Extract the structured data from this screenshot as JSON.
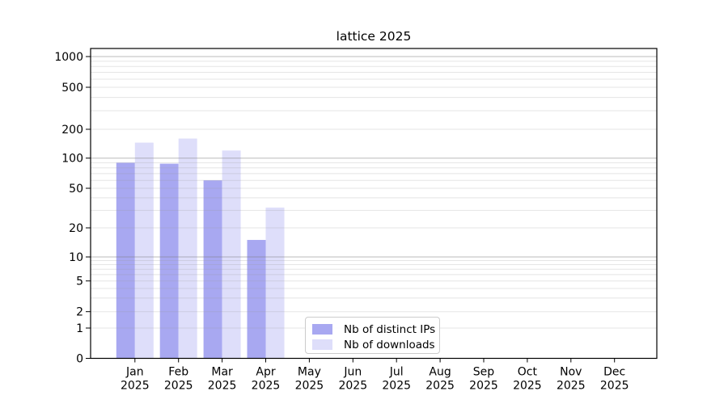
{
  "figure": {
    "background": "#ffffff",
    "text_color": "#000000"
  },
  "legend": {
    "items": [
      {
        "label": "Nb of distinct IPs",
        "color": "#a8a8f1",
        "icon": "legend-swatch-distinct-ips"
      },
      {
        "label": "Nb of downloads",
        "color": "#dedefa",
        "icon": "legend-swatch-downloads"
      }
    ]
  },
  "chart_data": {
    "type": "bar",
    "title": "lattice 2025",
    "categories": [
      "Jan",
      "Feb",
      "Mar",
      "Apr",
      "May",
      "Jun",
      "Jul",
      "Aug",
      "Sep",
      "Oct",
      "Nov",
      "Dec"
    ],
    "category_year": "2025",
    "series": [
      {
        "name": "Nb of distinct IPs",
        "color": "#a8a8f1",
        "values": [
          90,
          88,
          60,
          15,
          0,
          0,
          0,
          0,
          0,
          0,
          0,
          0
        ]
      },
      {
        "name": "Nb of downloads",
        "color": "#dedefa",
        "values": [
          145,
          160,
          120,
          32,
          0,
          0,
          0,
          0,
          0,
          0,
          0,
          0
        ]
      }
    ],
    "xlabel": "",
    "ylabel": "",
    "yscale": "log-with-zero",
    "y_ticks": [
      0,
      1,
      2,
      5,
      10,
      20,
      50,
      100,
      200,
      500,
      1000
    ],
    "ylim": [
      0,
      1250
    ],
    "grid": true,
    "grid_minor_values": [
      2,
      3,
      4,
      5,
      6,
      7,
      8,
      9,
      20,
      30,
      40,
      50,
      60,
      70,
      80,
      90,
      200,
      300,
      400,
      500,
      600,
      700,
      800,
      900
    ],
    "grid_major_values": [
      10,
      100,
      1000
    ],
    "legend_position": "lower-center"
  }
}
